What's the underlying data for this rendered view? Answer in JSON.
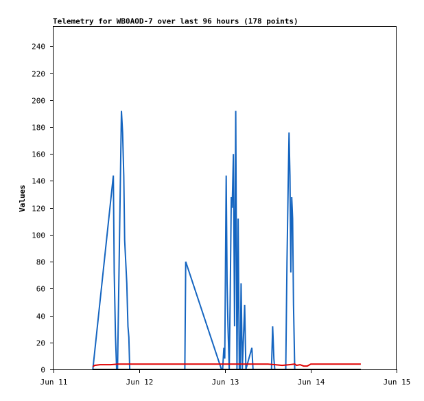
{
  "chart_data": {
    "type": "line",
    "title": "Telemetry for WB0AOD-7 over last 96 hours (178 points)",
    "xlabel": "",
    "ylabel": "Values",
    "x_tick_labels": [
      "Jun 11",
      "Jun 12",
      "Jun 13",
      "Jun 14",
      "Jun 15"
    ],
    "y_tick_labels": [
      "0",
      "20",
      "40",
      "60",
      "80",
      "100",
      "120",
      "140",
      "160",
      "180",
      "200",
      "220",
      "240"
    ],
    "xlim": [
      "2024-06-11",
      "2024-06-15"
    ],
    "ylim": [
      0,
      255
    ],
    "grid": false,
    "colors": {
      "blue": "#1565c0",
      "red": "#e00000",
      "black": "#000000"
    },
    "series": [
      {
        "color": "#1565c0",
        "x": [
          "2024-06-11T11:00",
          "2024-06-11T16:45",
          "2024-06-11T17:00",
          "2024-06-11T17:20",
          "2024-06-11T17:40",
          "2024-06-11T17:55",
          "2024-06-11T19:00",
          "2024-06-11T19:20",
          "2024-06-11T19:40",
          "2024-06-11T19:55",
          "2024-06-11T20:30",
          "2024-06-11T20:50",
          "2024-06-11T21:05",
          "2024-06-11T21:20",
          "2024-06-12T12:45",
          "2024-06-12T13:00",
          "2024-06-12T23:00",
          "2024-06-12T23:20",
          "2024-06-12T23:40",
          "2024-06-12T23:55",
          "2024-06-13T00:20",
          "2024-06-13T00:35",
          "2024-06-13T00:50",
          "2024-06-13T01:10",
          "2024-06-13T01:25",
          "2024-06-13T01:45",
          "2024-06-13T02:00",
          "2024-06-13T02:20",
          "2024-06-13T02:40",
          "2024-06-13T03:00",
          "2024-06-13T03:20",
          "2024-06-13T03:40",
          "2024-06-13T04:00",
          "2024-06-13T04:15",
          "2024-06-13T04:30",
          "2024-06-13T04:50",
          "2024-06-13T05:10",
          "2024-06-13T05:30",
          "2024-06-13T05:50",
          "2024-06-13T07:30",
          "2024-06-13T07:50",
          "2024-06-13T08:10",
          "2024-06-13T13:00",
          "2024-06-13T13:20",
          "2024-06-13T13:40",
          "2024-06-13T13:55",
          "2024-06-13T17:00",
          "2024-06-13T17:20",
          "2024-06-13T17:40",
          "2024-06-13T17:55",
          "2024-06-13T18:10",
          "2024-06-13T18:25",
          "2024-06-13T18:40",
          "2024-06-13T18:55",
          "2024-06-13T19:10",
          "2024-06-13T19:30"
        ],
        "y": [
          0,
          144,
          72,
          25,
          0,
          0,
          192,
          176,
          144,
          96,
          64,
          32,
          24,
          0,
          0,
          80,
          0,
          0,
          16,
          8,
          144,
          64,
          32,
          0,
          48,
          128,
          120,
          160,
          32,
          192,
          0,
          112,
          0,
          0,
          64,
          0,
          24,
          48,
          0,
          16,
          0,
          0,
          0,
          32,
          8,
          0,
          0,
          80,
          136,
          176,
          144,
          72,
          128,
          112,
          48,
          0
        ]
      },
      {
        "color": "#e00000",
        "x": [
          "2024-06-11T11:00",
          "2024-06-11T11:30",
          "2024-06-11T13:00",
          "2024-06-11T14:30",
          "2024-06-11T16:00",
          "2024-06-11T18:00",
          "2024-06-11T22:00",
          "2024-06-12T06:00",
          "2024-06-12T14:00",
          "2024-06-12T22:00",
          "2024-06-13T06:00",
          "2024-06-13T12:00",
          "2024-06-13T14:00",
          "2024-06-13T16:00",
          "2024-06-13T18:00",
          "2024-06-13T19:30",
          "2024-06-13T20:00",
          "2024-06-13T21:00",
          "2024-06-13T22:00",
          "2024-06-13T23:00",
          "2024-06-14T00:00",
          "2024-06-14T06:00",
          "2024-06-14T12:00",
          "2024-06-14T14:00"
        ],
        "y": [
          2,
          3,
          3.5,
          3.5,
          3.5,
          4,
          4,
          4,
          4,
          4,
          4,
          4,
          3.5,
          3,
          3.5,
          4,
          3,
          3.5,
          2.5,
          2.5,
          4,
          4,
          4,
          4
        ]
      },
      {
        "color": "#000000",
        "x": [
          "2024-06-11T11:00",
          "2024-06-14T14:00"
        ],
        "y": [
          0,
          0
        ]
      }
    ]
  }
}
